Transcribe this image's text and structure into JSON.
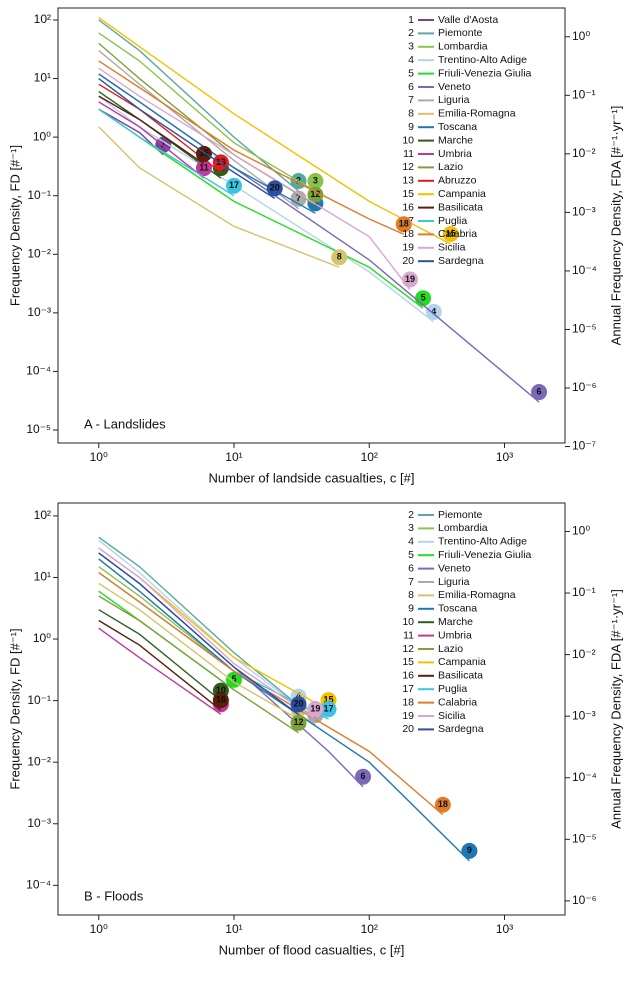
{
  "chart_data": [
    {
      "type": "line",
      "title": "A - Landslides",
      "x_label": "Number of landside casualties, c [#]",
      "y_label": "Frequency Density, FD [#⁻¹]",
      "y2_label": "Annual Frequency Density, FDA [#⁻¹·yr⁻¹]",
      "log_x": true,
      "log_y": true,
      "xlim": [
        0.5,
        2800
      ],
      "ylim": [
        6e-06,
        160
      ],
      "y2lim": [
        1.15e-07,
        3.1
      ],
      "xticks": [
        {
          "value": 1,
          "label": "10⁰"
        },
        {
          "value": 10,
          "label": "10¹"
        },
        {
          "value": 100,
          "label": "10²"
        },
        {
          "value": 1000,
          "label": "10³"
        }
      ],
      "yticks": [
        {
          "value": 1e-05,
          "label": "10⁻⁵"
        },
        {
          "value": 0.0001,
          "label": "10⁻⁴"
        },
        {
          "value": 0.001,
          "label": "10⁻³"
        },
        {
          "value": 0.01,
          "label": "10⁻²"
        },
        {
          "value": 0.1,
          "label": "10⁻¹"
        },
        {
          "value": 1,
          "label": "10⁰"
        },
        {
          "value": 10,
          "label": "10¹"
        },
        {
          "value": 100,
          "label": "10²"
        }
      ],
      "y2ticks": [
        {
          "value": 1e-07,
          "label": "10⁻⁷"
        },
        {
          "value": 1e-06,
          "label": "10⁻⁶"
        },
        {
          "value": 1e-05,
          "label": "10⁻⁵"
        },
        {
          "value": 0.0001,
          "label": "10⁻⁴"
        },
        {
          "value": 0.001,
          "label": "10⁻³"
        },
        {
          "value": 0.01,
          "label": "10⁻²"
        },
        {
          "value": 0.1,
          "label": "10⁻¹"
        },
        {
          "value": 1,
          "label": "10⁰"
        }
      ],
      "series": [
        {
          "id": "1",
          "name": "Valle d'Aosta",
          "color": "#7b3f9e",
          "x": [
            1,
            2,
            3
          ],
          "values": [
            3,
            1.2,
            0.5
          ]
        },
        {
          "id": "2",
          "name": "Piemonte",
          "color": "#5aa9a0",
          "x": [
            1,
            2,
            10,
            30
          ],
          "values": [
            100,
            30,
            1,
            0.12
          ]
        },
        {
          "id": "3",
          "name": "Lombardia",
          "color": "#8bc34a",
          "x": [
            1,
            2,
            10,
            40
          ],
          "values": [
            60,
            20,
            0.8,
            0.12
          ]
        },
        {
          "id": "4",
          "name": "Trentino-Alto Adige",
          "color": "#b3d4ee",
          "x": [
            1,
            2,
            10,
            100,
            300
          ],
          "values": [
            5,
            1.5,
            0.15,
            0.005,
            0.0007
          ]
        },
        {
          "id": "5",
          "name": "Friuli-Venezia Giulia",
          "color": "#22dd22",
          "x": [
            1,
            2,
            10,
            100,
            250
          ],
          "values": [
            3,
            1,
            0.08,
            0.006,
            0.0012
          ]
        },
        {
          "id": "6",
          "name": "Veneto",
          "color": "#7b68b8",
          "x": [
            1,
            2,
            10,
            100,
            1800
          ],
          "values": [
            12,
            4,
            0.3,
            0.008,
            3e-05
          ]
        },
        {
          "id": "7",
          "name": "Liguria",
          "color": "#aaaaaa",
          "x": [
            1,
            2,
            10,
            30
          ],
          "values": [
            30,
            8,
            0.4,
            0.06
          ]
        },
        {
          "id": "8",
          "name": "Emilia-Romagna",
          "color": "#d4c46a",
          "x": [
            1,
            2,
            10,
            60
          ],
          "values": [
            1.5,
            0.3,
            0.03,
            0.006
          ]
        },
        {
          "id": "9",
          "name": "Toscana",
          "color": "#1f78b4",
          "x": [
            1,
            2,
            10,
            40
          ],
          "values": [
            12,
            4,
            0.3,
            0.05
          ]
        },
        {
          "id": "10",
          "name": "Marche",
          "color": "#2e5e1e",
          "x": [
            1,
            2,
            8
          ],
          "values": [
            6,
            2,
            0.2
          ]
        },
        {
          "id": "11",
          "name": "Umbria",
          "color": "#c2399a",
          "x": [
            1,
            2,
            6
          ],
          "values": [
            4,
            1.5,
            0.2
          ]
        },
        {
          "id": "12",
          "name": "Lazio",
          "color": "#7da13a",
          "x": [
            1,
            2,
            10,
            40
          ],
          "values": [
            40,
            10,
            0.5,
            0.07
          ]
        },
        {
          "id": "13",
          "name": "Abruzzo",
          "color": "#e41a1c",
          "x": [
            1,
            2,
            8
          ],
          "values": [
            8,
            3,
            0.25
          ]
        },
        {
          "id": "15",
          "name": "Campania",
          "color": "#f2c100",
          "x": [
            1,
            2,
            10,
            100,
            400
          ],
          "values": [
            110,
            35,
            2.5,
            0.08,
            0.015
          ]
        },
        {
          "id": "16",
          "name": "Basilicata",
          "color": "#5a1e0a",
          "x": [
            1,
            2,
            6
          ],
          "values": [
            5,
            2,
            0.35
          ]
        },
        {
          "id": "17",
          "name": "Puglia",
          "color": "#3bc4e2",
          "x": [
            1,
            2,
            10
          ],
          "values": [
            3,
            1,
            0.1
          ]
        },
        {
          "id": "18",
          "name": "Calabria",
          "color": "#e07b28",
          "x": [
            1,
            2,
            10,
            100,
            180
          ],
          "values": [
            20,
            7,
            0.6,
            0.04,
            0.022
          ]
        },
        {
          "id": "19",
          "name": "Sicilia",
          "color": "#d9a6d0",
          "x": [
            1,
            2,
            10,
            100,
            200
          ],
          "values": [
            15,
            5,
            0.5,
            0.02,
            0.0025
          ]
        },
        {
          "id": "20",
          "name": "Sardegna",
          "color": "#2c4f9e",
          "x": [
            1,
            2,
            10,
            20
          ],
          "values": [
            10,
            3,
            0.25,
            0.09
          ]
        }
      ]
    },
    {
      "type": "line",
      "title": "B - Floods",
      "x_label": "Number of flood casualties, c [#]",
      "y_label": "Frequency Density, FD [#⁻¹]",
      "y2_label": "Annual Frequency Density, FDA [#⁻¹·yr⁻¹]",
      "log_x": true,
      "log_y": true,
      "xlim": [
        0.5,
        2800
      ],
      "ylim": [
        3.3e-05,
        162
      ],
      "y2lim": [
        5.9e-07,
        2.9
      ],
      "xticks": [
        {
          "value": 1,
          "label": "10⁰"
        },
        {
          "value": 10,
          "label": "10¹"
        },
        {
          "value": 100,
          "label": "10²"
        },
        {
          "value": 1000,
          "label": "10³"
        }
      ],
      "yticks": [
        {
          "value": 0.0001,
          "label": "10⁻⁴"
        },
        {
          "value": 0.001,
          "label": "10⁻³"
        },
        {
          "value": 0.01,
          "label": "10⁻²"
        },
        {
          "value": 0.1,
          "label": "10⁻¹"
        },
        {
          "value": 1,
          "label": "10⁰"
        },
        {
          "value": 10,
          "label": "10¹"
        },
        {
          "value": 100,
          "label": "10²"
        }
      ],
      "y2ticks": [
        {
          "value": 1e-06,
          "label": "10⁻⁶"
        },
        {
          "value": 1e-05,
          "label": "10⁻⁵"
        },
        {
          "value": 0.0001,
          "label": "10⁻⁴"
        },
        {
          "value": 0.001,
          "label": "10⁻³"
        },
        {
          "value": 0.01,
          "label": "10⁻²"
        },
        {
          "value": 0.1,
          "label": "10⁻¹"
        },
        {
          "value": 1,
          "label": "10⁰"
        }
      ],
      "series": [
        {
          "id": "2",
          "name": "Piemonte",
          "color": "#5aa9a0",
          "x": [
            1,
            2,
            10,
            40
          ],
          "values": [
            45,
            15,
            0.6,
            0.05
          ]
        },
        {
          "id": "3",
          "name": "Lombardia",
          "color": "#8bc34a",
          "x": [
            1,
            2,
            10,
            40
          ],
          "values": [
            15,
            5,
            0.3,
            0.04
          ]
        },
        {
          "id": "4",
          "name": "Trentino-Alto Adige",
          "color": "#b3d4ee",
          "x": [
            1,
            2,
            10,
            30
          ],
          "values": [
            40,
            12,
            0.5,
            0.08
          ]
        },
        {
          "id": "5",
          "name": "Friuli-Venezia Giulia",
          "color": "#22dd22",
          "x": [
            1,
            2,
            10
          ],
          "values": [
            6,
            2,
            0.15
          ]
        },
        {
          "id": "6",
          "name": "Veneto",
          "color": "#7b68b8",
          "x": [
            1,
            2,
            10,
            50,
            90
          ],
          "values": [
            25,
            8,
            0.35,
            0.015,
            0.004
          ]
        },
        {
          "id": "7",
          "name": "Liguria",
          "color": "#aaaaaa",
          "x": [
            1,
            2,
            10,
            40
          ],
          "values": [
            20,
            6,
            0.3,
            0.04
          ]
        },
        {
          "id": "8",
          "name": "Emilia-Romagna",
          "color": "#d4c46a",
          "x": [
            1,
            2,
            10,
            30
          ],
          "values": [
            8,
            3,
            0.2,
            0.05
          ]
        },
        {
          "id": "9",
          "name": "Toscana",
          "color": "#1f78b4",
          "x": [
            1,
            2,
            10,
            100,
            550
          ],
          "values": [
            20,
            6,
            0.3,
            0.01,
            0.00025
          ]
        },
        {
          "id": "10",
          "name": "Marche",
          "color": "#2e5e1e",
          "x": [
            1,
            2,
            8
          ],
          "values": [
            3,
            1.2,
            0.1
          ]
        },
        {
          "id": "11",
          "name": "Umbria",
          "color": "#c2399a",
          "x": [
            1,
            2,
            8
          ],
          "values": [
            1.5,
            0.5,
            0.06
          ]
        },
        {
          "id": "12",
          "name": "Lazio",
          "color": "#7da13a",
          "x": [
            1,
            2,
            10,
            30
          ],
          "values": [
            5,
            2,
            0.15,
            0.03
          ]
        },
        {
          "id": "15",
          "name": "Campania",
          "color": "#f2c100",
          "x": [
            1,
            2,
            10,
            50
          ],
          "values": [
            30,
            10,
            0.5,
            0.07
          ]
        },
        {
          "id": "16",
          "name": "Basilicata",
          "color": "#5a1e0a",
          "x": [
            1,
            2,
            8
          ],
          "values": [
            2,
            0.8,
            0.07
          ]
        },
        {
          "id": "17",
          "name": "Puglia",
          "color": "#3bc4e2",
          "x": [
            1,
            2,
            10,
            50
          ],
          "values": [
            12,
            4,
            0.3,
            0.05
          ]
        },
        {
          "id": "18",
          "name": "Calabria",
          "color": "#e07b28",
          "x": [
            1,
            2,
            10,
            100,
            350
          ],
          "values": [
            12,
            4,
            0.3,
            0.015,
            0.0014
          ]
        },
        {
          "id": "19",
          "name": "Sicilia",
          "color": "#d9a6d0",
          "x": [
            1,
            2,
            10,
            40
          ],
          "values": [
            30,
            10,
            0.4,
            0.05
          ]
        },
        {
          "id": "20",
          "name": "Sardegna",
          "color": "#2c4f9e",
          "x": [
            1,
            2,
            10,
            30
          ],
          "values": [
            25,
            8,
            0.35,
            0.06
          ]
        }
      ]
    }
  ]
}
